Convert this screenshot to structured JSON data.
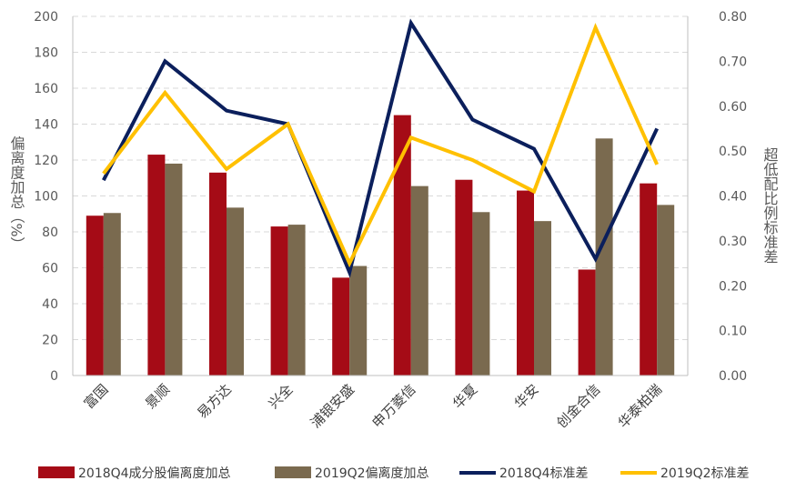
{
  "chart_data": {
    "type": "bar",
    "categories": [
      "富国",
      "景顺",
      "易方达",
      "兴全",
      "浦银安盛",
      "申万菱信",
      "华夏",
      "华安",
      "创金合信",
      "华泰柏瑞"
    ],
    "series": [
      {
        "name": "2018Q4成分股偏离度加总",
        "type": "bar",
        "axis": "left",
        "color": "#A50B16",
        "values": [
          89,
          123,
          113,
          83,
          54.5,
          145,
          109,
          103,
          59,
          107
        ]
      },
      {
        "name": "2019Q2偏离度加总",
        "type": "bar",
        "axis": "left",
        "color": "#7A6A4F",
        "values": [
          90.5,
          118,
          93.5,
          84,
          61,
          105.5,
          91,
          86,
          132,
          95
        ]
      },
      {
        "name": "2018Q4标准差",
        "type": "line",
        "axis": "right",
        "color": "#0B1F5C",
        "values": [
          0.435,
          0.7,
          0.59,
          0.56,
          0.23,
          0.785,
          0.57,
          0.505,
          0.26,
          0.55
        ]
      },
      {
        "name": "2019Q2标准差",
        "type": "line",
        "axis": "right",
        "color": "#FFC000",
        "values": [
          0.45,
          0.63,
          0.46,
          0.56,
          0.25,
          0.53,
          0.48,
          0.41,
          0.775,
          0.47
        ]
      }
    ],
    "y_left": {
      "label": "偏离度加总（%）",
      "ylim": [
        0,
        200
      ],
      "ticks": [
        "0",
        "20",
        "40",
        "60",
        "80",
        "100",
        "120",
        "140",
        "160",
        "180",
        "200"
      ]
    },
    "y_right": {
      "label": "超低配比例标准差",
      "ylim": [
        0,
        0.8
      ],
      "ticks": [
        "0.00",
        "0.10",
        "0.20",
        "0.30",
        "0.40",
        "0.50",
        "0.60",
        "0.70",
        "0.80"
      ]
    },
    "grid": "horizontal-dashed",
    "legend_position": "bottom"
  }
}
